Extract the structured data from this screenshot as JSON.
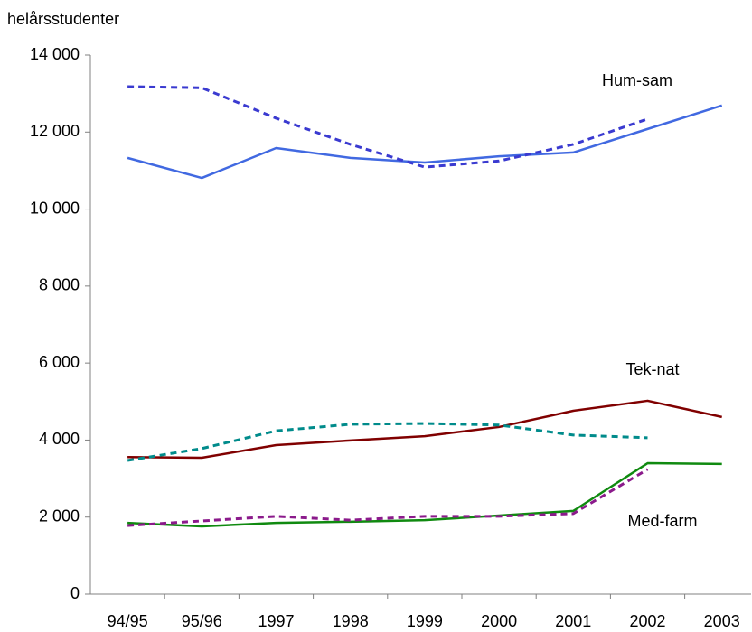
{
  "chart_data": {
    "type": "line",
    "y_label": "helårsstudenter",
    "categories": [
      "94/95",
      "95/96",
      "1997",
      "1998",
      "1999",
      "2000",
      "2001",
      "2002",
      "2003"
    ],
    "series": [
      {
        "color": "#4169e1",
        "dash": false,
        "values": [
          11330,
          10810,
          11585,
          11330,
          11210,
          11370,
          11470,
          12080,
          12690
        ]
      },
      {
        "color": "#3a3ad0",
        "dash": true,
        "values": [
          13180,
          13150,
          12360,
          11680,
          11090,
          11250,
          11680,
          12340,
          null
        ]
      },
      {
        "color": "#800000",
        "dash": false,
        "values": [
          3560,
          3540,
          3870,
          3990,
          4100,
          4340,
          4760,
          5020,
          4600
        ]
      },
      {
        "color": "#008b8b",
        "dash": true,
        "values": [
          3470,
          3780,
          4240,
          4410,
          4430,
          4390,
          4130,
          4060,
          null
        ]
      },
      {
        "color": "#108a10",
        "dash": false,
        "values": [
          1850,
          1760,
          1850,
          1880,
          1920,
          2040,
          2160,
          3400,
          3380
        ]
      },
      {
        "color": "#8b1a8b",
        "dash": true,
        "values": [
          1780,
          1900,
          2020,
          1920,
          2020,
          2020,
          2090,
          3240,
          null
        ]
      }
    ],
    "annotations": [
      "Hum-sam",
      "Tek-nat",
      "Med-farm"
    ],
    "ylim": [
      0,
      14000
    ],
    "yticks": [
      {
        "value": 0,
        "label": "0"
      },
      {
        "value": 2000,
        "label": "2 000"
      },
      {
        "value": 4000,
        "label": "4 000"
      },
      {
        "value": 6000,
        "label": "6 000"
      },
      {
        "value": 8000,
        "label": "8 000"
      },
      {
        "value": 10000,
        "label": "10 000"
      },
      {
        "value": 12000,
        "label": "12 000"
      },
      {
        "value": 14000,
        "label": "14 000"
      }
    ],
    "grid": false
  }
}
